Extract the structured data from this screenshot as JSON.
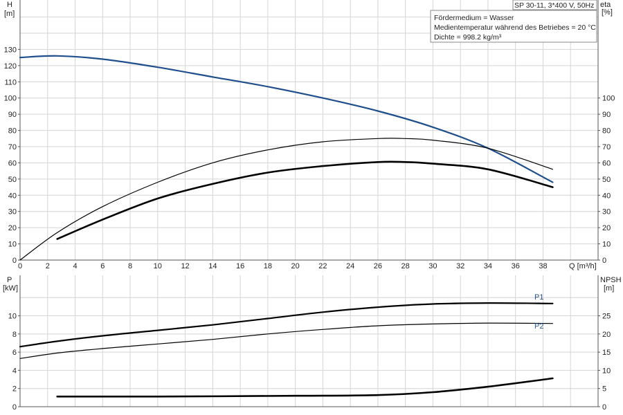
{
  "header": {
    "pump_label": "SP 30-11, 3*400 V, 50Hz",
    "info_lines": [
      "Fördermedium = Wasser",
      "Medientemperatur während des Betriebes = 20 °C",
      "Dichte = 998.2 kg/m³"
    ]
  },
  "colors": {
    "head": "#1f4e8c",
    "p1": "#1f4e8c",
    "p2": "#2a5d9f",
    "efficiency": "#000000",
    "npsh": "#000000",
    "grid": "#d4d4d4"
  },
  "chart_data": [
    {
      "type": "line",
      "name_hint": "upper",
      "left_axis": {
        "label_top": "H",
        "label_unit": "[m]",
        "range": [
          0,
          140
        ],
        "ticks": [
          0,
          10,
          20,
          30,
          40,
          50,
          60,
          70,
          80,
          90,
          100,
          110,
          120,
          130
        ]
      },
      "right_axis": {
        "label_top": "eta",
        "label_unit": "[%]",
        "range": [
          0,
          140
        ],
        "ticks": [
          0,
          10,
          20,
          30,
          40,
          50,
          60,
          70,
          80,
          90,
          100
        ]
      },
      "x_axis": {
        "label": "Q [m³/h]",
        "range": [
          0,
          42
        ],
        "ticks": [
          0,
          2,
          4,
          6,
          8,
          10,
          12,
          14,
          16,
          18,
          20,
          22,
          24,
          26,
          28,
          30,
          32,
          34,
          36,
          38
        ]
      },
      "grid": true,
      "series": [
        {
          "key": "head",
          "axis": "left",
          "width": 2.2,
          "x": [
            0,
            2.7,
            6,
            10,
            14,
            18,
            22,
            26,
            30,
            34,
            38.7
          ],
          "y": [
            125,
            126,
            124,
            119,
            113,
            107,
            100,
            92,
            82,
            69,
            48
          ]
        },
        {
          "key": "eta_thin",
          "axis": "right",
          "width": 1.2,
          "x": [
            0,
            2.7,
            6,
            10,
            14,
            18,
            22,
            26,
            28,
            30,
            34,
            38.7
          ],
          "y": [
            0,
            17,
            33,
            48,
            60,
            68,
            73,
            75,
            75,
            74,
            69,
            56
          ]
        },
        {
          "key": "eta_thick",
          "axis": "right",
          "width": 2.6,
          "x": [
            2.7,
            6,
            10,
            14,
            18,
            22,
            26,
            28,
            30,
            34,
            38.7
          ],
          "y": [
            13,
            25,
            38,
            47,
            54,
            58,
            60.5,
            60.5,
            59.5,
            56,
            45
          ]
        }
      ]
    },
    {
      "type": "line",
      "name_hint": "lower",
      "left_axis": {
        "label_top": "P",
        "label_unit": "[kW]",
        "range": [
          0,
          12
        ],
        "ticks": [
          0,
          2,
          4,
          6,
          8,
          10
        ]
      },
      "right_axis": {
        "label_top": "NPSH",
        "label_unit": "[m]",
        "range": [
          0,
          30
        ],
        "ticks": [
          0,
          5,
          10,
          15,
          20,
          25
        ]
      },
      "x_axis": {
        "range": [
          0,
          42
        ],
        "ticks": []
      },
      "grid": true,
      "series": [
        {
          "key": "P1",
          "name": "P1",
          "axis": "left",
          "width": 2.2,
          "x": [
            0,
            2.7,
            6,
            10,
            14,
            18,
            22,
            26,
            30,
            34,
            38.7
          ],
          "y": [
            6.6,
            7.2,
            7.8,
            8.4,
            9.0,
            9.7,
            10.4,
            10.95,
            11.3,
            11.4,
            11.35
          ]
        },
        {
          "key": "P2",
          "name": "P2",
          "axis": "left",
          "width": 1.2,
          "x": [
            0,
            2.7,
            6,
            10,
            14,
            18,
            22,
            26,
            30,
            34,
            38.7
          ],
          "y": [
            5.3,
            5.9,
            6.4,
            6.9,
            7.4,
            8.0,
            8.5,
            8.9,
            9.1,
            9.2,
            9.15
          ]
        },
        {
          "key": "NPSH",
          "axis": "right",
          "width": 2.6,
          "x": [
            2.7,
            10,
            20,
            26,
            30,
            34,
            38.7
          ],
          "y": [
            2.8,
            2.8,
            3.0,
            3.2,
            4.0,
            5.5,
            7.8
          ]
        }
      ]
    }
  ]
}
